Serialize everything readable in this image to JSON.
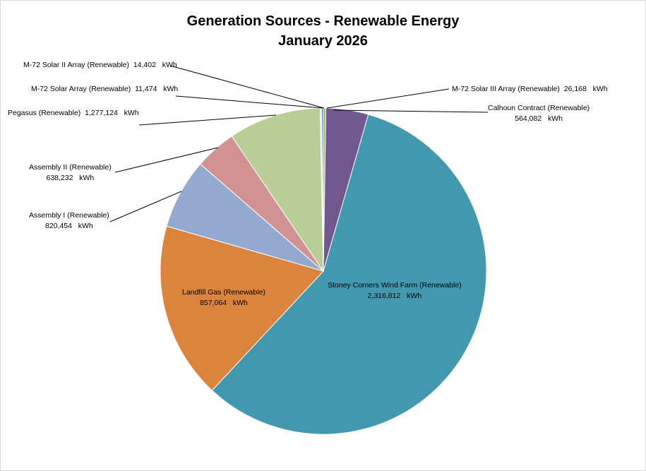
{
  "chart_data": {
    "type": "pie",
    "title": "Generation Sources - Renewable Energy",
    "subtitle": "January 2026",
    "unit": "kWh",
    "slices": [
      {
        "name": "M-72 Solar Array (Renewable)",
        "value": "11,474",
        "share_pct": 0.15,
        "color": "#dce6f2"
      },
      {
        "name": "M-72 Solar II Array (Renewable)",
        "value": "14,402",
        "share_pct": 0.17,
        "color": "#4f81bd"
      },
      {
        "name": "M-72 Solar III Array (Renewable)",
        "value": "26,168",
        "share_pct": 0.25,
        "color": "#9bbb59"
      },
      {
        "name": "Calhoun Contract (Renewable)",
        "value": "564,082",
        "share_pct": 4.2,
        "color": "#71588f"
      },
      {
        "name": "Stoney Corners Wind Farm (Renewable)",
        "value": "2,316,812",
        "share_pct": 57.5,
        "color": "#4198af"
      },
      {
        "name": "Landfill Gas (Renewable)",
        "value": "857,064",
        "share_pct": 17.5,
        "color": "#db843d"
      },
      {
        "name": "Assembly I (Renewable)",
        "value": "820,454",
        "share_pct": 6.95,
        "color": "#93a9cf"
      },
      {
        "name": "Assembly II (Renewable)",
        "value": "638,232",
        "share_pct": 4.1,
        "color": "#d19392"
      },
      {
        "name": "Pegasus (Renewable)",
        "value": "1,277,124",
        "share_pct": 9.18,
        "color": "#b9cd96"
      }
    ]
  }
}
